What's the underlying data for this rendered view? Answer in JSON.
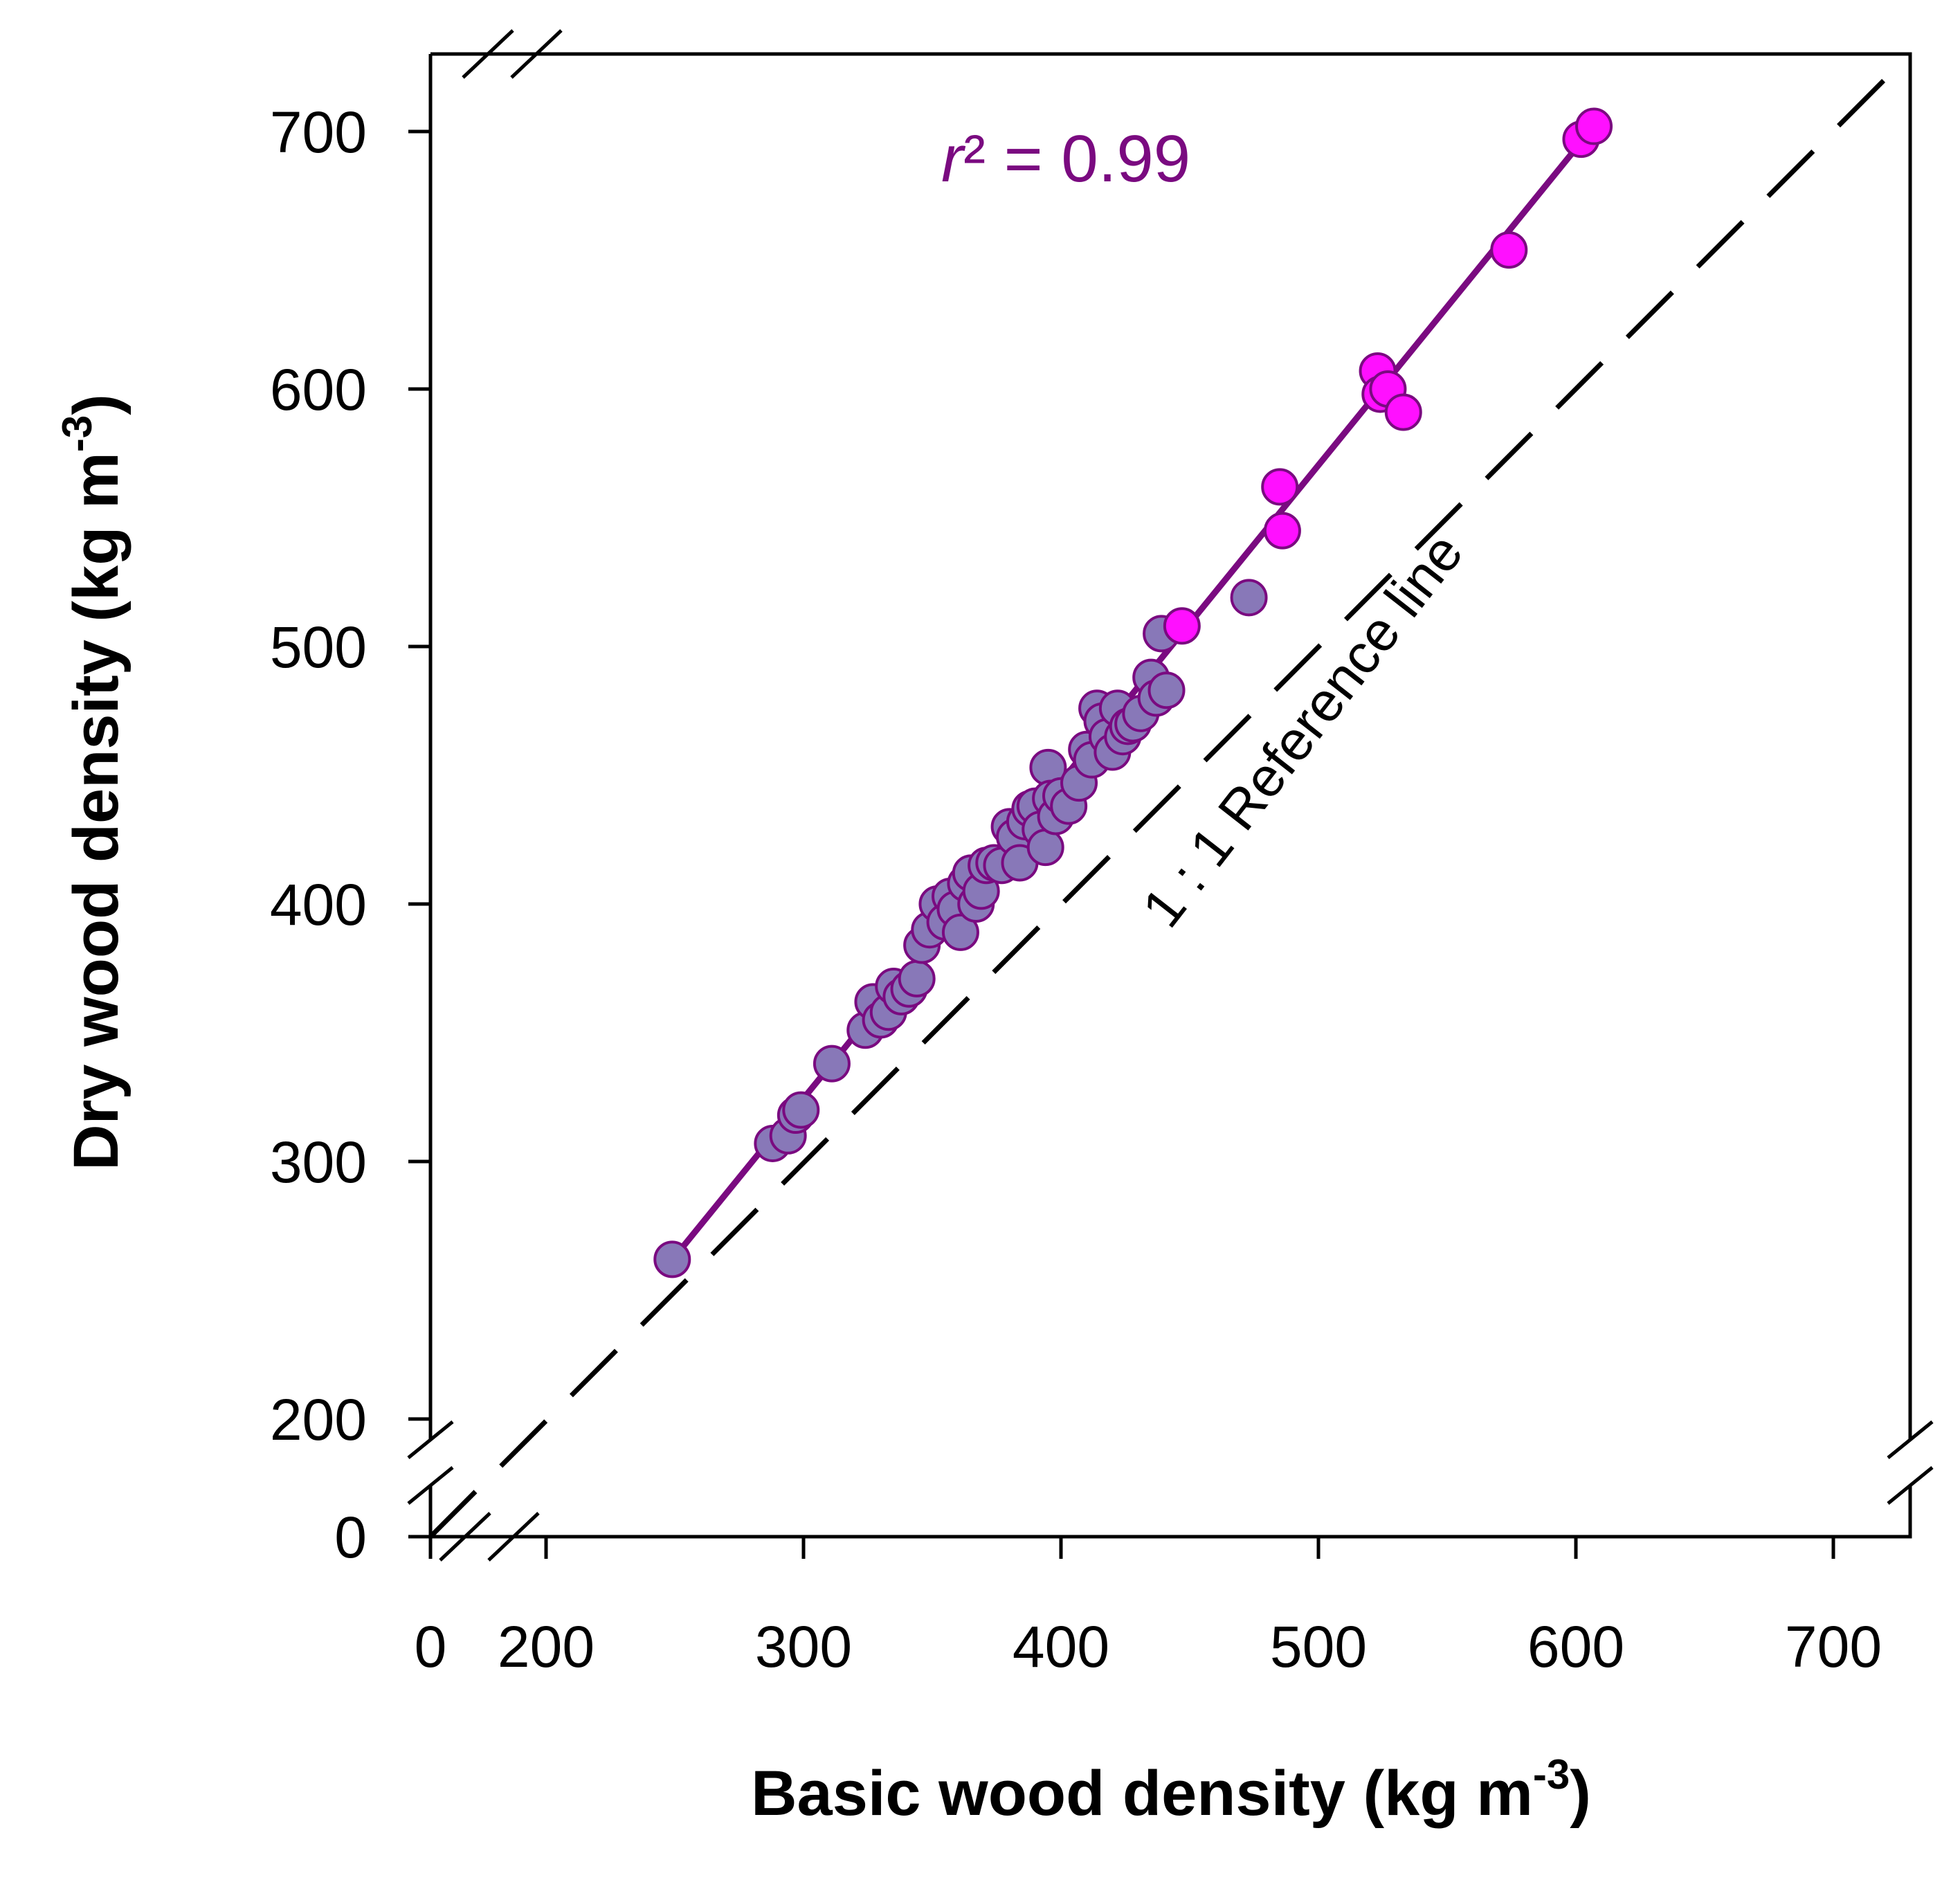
{
  "chart_data": {
    "type": "scatter",
    "title": "",
    "xlabel": "Basic wood density (kg m",
    "xlabel_sup": "-3",
    "xlabel_close": ")",
    "ylabel": "Dry wood density (kg m",
    "ylabel_sup": "-3",
    "ylabel_close": ")",
    "x_ticks": [
      "0",
      "200",
      "300",
      "400",
      "500",
      "600",
      "700"
    ],
    "y_ticks": [
      "0",
      "200",
      "300",
      "400",
      "500",
      "600",
      "700"
    ],
    "xlim": [
      155,
      730
    ],
    "ylim": [
      145,
      730
    ],
    "axis_break": true,
    "grid": false,
    "annotation_r": "r",
    "annotation_rest": "² = 0.99",
    "reference_line_label": "1 : 1 Reference line",
    "fit_line": {
      "x": [
        250,
        607
      ],
      "y": [
        263,
        702
      ]
    },
    "colors": {
      "fit": "#7a0a80",
      "series_a": "#8878b8",
      "series_b": "#ff10ff",
      "stroke": "#7a0a80"
    },
    "series": [
      {
        "points": [
          [
            249,
            262
          ],
          [
            288,
            307
          ],
          [
            294,
            310
          ],
          [
            297,
            318
          ],
          [
            299,
            320
          ],
          [
            311,
            338
          ],
          [
            324,
            351
          ],
          [
            327,
            362
          ],
          [
            330,
            355
          ],
          [
            333,
            358
          ],
          [
            335,
            368
          ],
          [
            338,
            364
          ],
          [
            341,
            367
          ],
          [
            344,
            371
          ],
          [
            346,
            384
          ],
          [
            349,
            390
          ],
          [
            352,
            400
          ],
          [
            355,
            393
          ],
          [
            357,
            403
          ],
          [
            359,
            398
          ],
          [
            361,
            389
          ],
          [
            363,
            408
          ],
          [
            365,
            412
          ],
          [
            367,
            400
          ],
          [
            369,
            405
          ],
          [
            371,
            415
          ],
          [
            374,
            416
          ],
          [
            377,
            415
          ],
          [
            380,
            430
          ],
          [
            382,
            426
          ],
          [
            384,
            416
          ],
          [
            386,
            432
          ],
          [
            388,
            437
          ],
          [
            390,
            438
          ],
          [
            392,
            429
          ],
          [
            394,
            422
          ],
          [
            395,
            453
          ],
          [
            396,
            441
          ],
          [
            398,
            434
          ],
          [
            400,
            442
          ],
          [
            403,
            438
          ],
          [
            407,
            447
          ],
          [
            410,
            460
          ],
          [
            412,
            456
          ],
          [
            414,
            476
          ],
          [
            416,
            471
          ],
          [
            418,
            465
          ],
          [
            420,
            459
          ],
          [
            422,
            476
          ],
          [
            424,
            465
          ],
          [
            426,
            469
          ],
          [
            428,
            470
          ],
          [
            431,
            474
          ],
          [
            435,
            488
          ],
          [
            437,
            480
          ],
          [
            439,
            505
          ],
          [
            441,
            483
          ],
          [
            473,
            519
          ]
        ]
      },
      {
        "points": [
          [
            447,
            508
          ],
          [
            485,
            562
          ],
          [
            486,
            545
          ],
          [
            523,
            607
          ],
          [
            524,
            598
          ],
          [
            527,
            600
          ],
          [
            533,
            591
          ],
          [
            574,
            654
          ],
          [
            602,
            697
          ],
          [
            607,
            702
          ]
        ]
      }
    ]
  }
}
